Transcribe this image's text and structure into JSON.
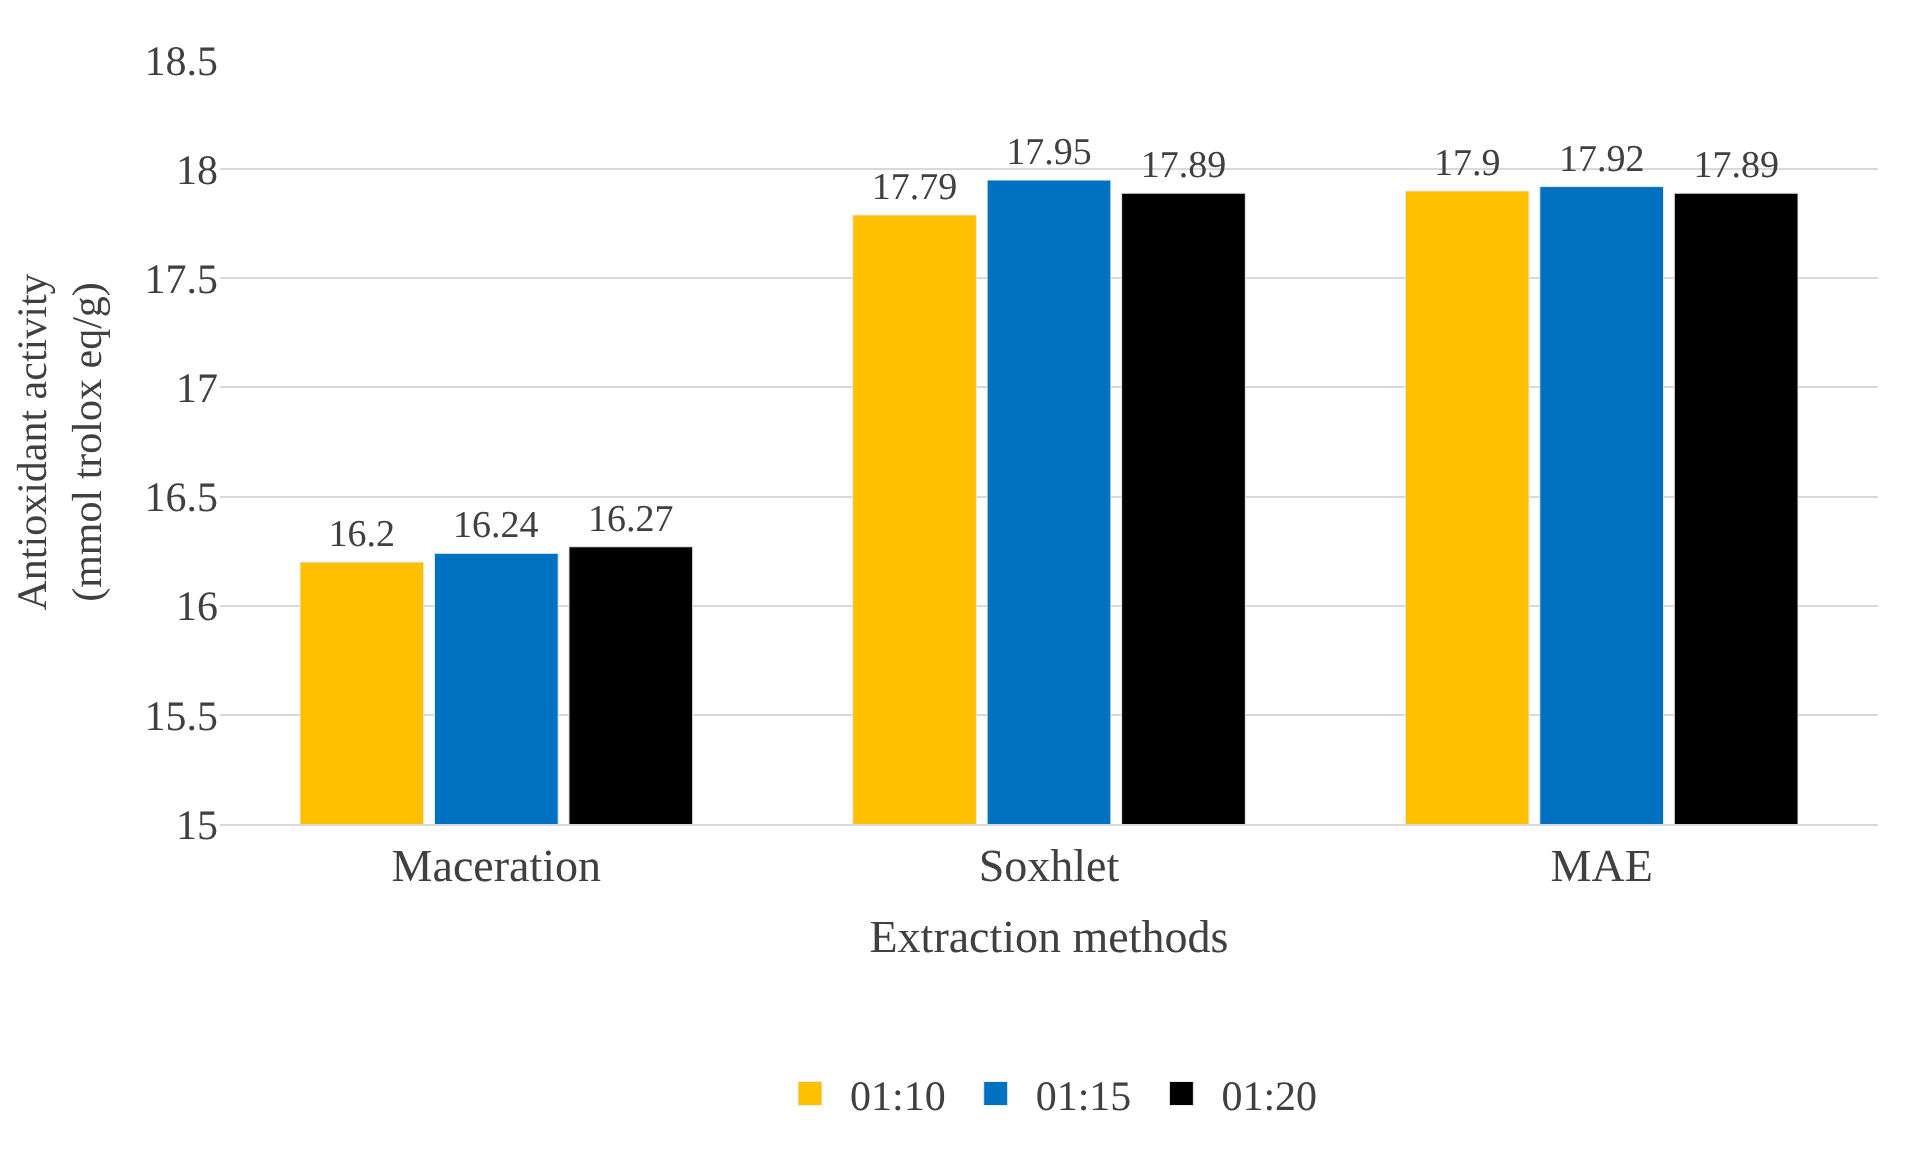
{
  "chart_data": {
    "type": "bar",
    "xlabel": "Extraction methods",
    "ylabel": "Antioxidant activity\n(mmol trolox eq/g)",
    "categories": [
      "Maceration",
      "Soxhlet",
      "MAE"
    ],
    "series": [
      {
        "name": "01:10",
        "color": "#ffc000",
        "values": [
          16.2,
          17.79,
          17.9
        ]
      },
      {
        "name": "01:15",
        "color": "#0070c0",
        "values": [
          16.24,
          17.95,
          17.92
        ]
      },
      {
        "name": "01:20",
        "color": "#000000",
        "values": [
          16.27,
          17.89,
          17.89
        ]
      }
    ],
    "ylim": [
      15,
      18.5
    ],
    "yticks": [
      15,
      15.5,
      16,
      16.5,
      17,
      17.5,
      18,
      18.5
    ],
    "grid": "y",
    "legend": "bottom",
    "data_labels": true
  }
}
